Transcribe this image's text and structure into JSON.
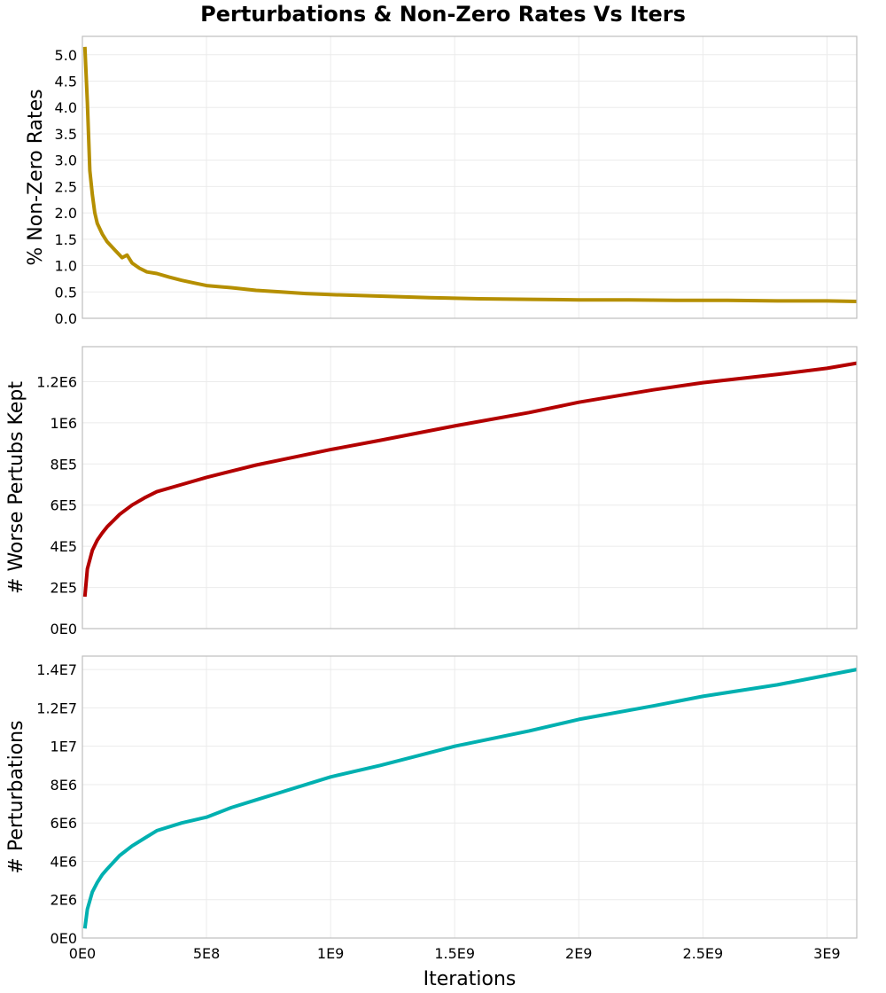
{
  "title": "Perturbations & Non-Zero Rates Vs Iters",
  "chart_data": [
    {
      "type": "line",
      "panel": 1,
      "title": "Perturbations & Non-Zero Rates Vs Iters",
      "xlabel": "Iterations",
      "ylabel": "% Non-Zero Rates",
      "color": "#b58f00",
      "xlim": [
        0,
        3120000000.0
      ],
      "ylim": [
        0,
        5.35
      ],
      "yticks": [
        0.0,
        0.5,
        1.0,
        1.5,
        2.0,
        2.5,
        3.0,
        3.5,
        4.0,
        4.5,
        5.0
      ],
      "ytick_labels": [
        "0.0",
        "0.5",
        "1.0",
        "1.5",
        "2.0",
        "2.5",
        "3.0",
        "3.5",
        "4.0",
        "4.5",
        "5.0"
      ],
      "grid": true,
      "x": [
        10000000.0,
        20000000.0,
        30000000.0,
        40000000.0,
        50000000.0,
        60000000.0,
        80000000.0,
        100000000.0,
        130000000.0,
        160000000.0,
        180000000.0,
        200000000.0,
        230000000.0,
        260000000.0,
        300000000.0,
        350000000.0,
        400000000.0,
        450000000.0,
        500000000.0,
        600000000.0,
        700000000.0,
        800000000.0,
        900000000.0,
        1000000000.0,
        1200000000.0,
        1400000000.0,
        1600000000.0,
        1800000000.0,
        2000000000.0,
        2200000000.0,
        2400000000.0,
        2600000000.0,
        2800000000.0,
        3000000000.0,
        3120000000.0
      ],
      "y": [
        5.15,
        4.1,
        2.8,
        2.35,
        2.0,
        1.8,
        1.6,
        1.45,
        1.3,
        1.15,
        1.2,
        1.05,
        0.95,
        0.88,
        0.85,
        0.78,
        0.72,
        0.67,
        0.62,
        0.58,
        0.53,
        0.5,
        0.47,
        0.45,
        0.42,
        0.39,
        0.37,
        0.36,
        0.35,
        0.35,
        0.34,
        0.34,
        0.33,
        0.33,
        0.32
      ]
    },
    {
      "type": "line",
      "panel": 2,
      "xlabel": "Iterations",
      "ylabel": "# Worse Pertubs Kept",
      "color": "#b30000",
      "xlim": [
        0,
        3120000000.0
      ],
      "ylim": [
        0,
        1370000.0
      ],
      "yticks": [
        0,
        200000,
        400000,
        600000,
        800000,
        1000000,
        1200000
      ],
      "ytick_labels": [
        "0E0",
        "2E5",
        "4E5",
        "6E5",
        "8E5",
        "1E6",
        "1.2E6"
      ],
      "grid": true,
      "x": [
        10000000.0,
        20000000.0,
        40000000.0,
        60000000.0,
        80000000.0,
        100000000.0,
        150000000.0,
        200000000.0,
        250000000.0,
        300000000.0,
        400000000.0,
        500000000.0,
        600000000.0,
        700000000.0,
        800000000.0,
        1000000000.0,
        1200000000.0,
        1500000000.0,
        1800000000.0,
        2000000000.0,
        2300000000.0,
        2500000000.0,
        2800000000.0,
        3000000000.0,
        3120000000.0
      ],
      "y": [
        155000,
        290000,
        380000,
        430000,
        465000,
        495000,
        555000,
        600000,
        635000,
        665000,
        700000,
        735000,
        765000,
        795000,
        820000,
        870000,
        915000,
        985000,
        1050000,
        1100000,
        1160000,
        1195000,
        1235000,
        1265000,
        1290000
      ]
    },
    {
      "type": "line",
      "panel": 3,
      "xlabel": "Iterations",
      "ylabel": "# Perturbations",
      "color": "#00b0b0",
      "xlim": [
        0,
        3120000000.0
      ],
      "ylim": [
        0,
        14700000.0
      ],
      "yticks": [
        0,
        2000000,
        4000000,
        6000000,
        8000000,
        10000000,
        12000000,
        14000000
      ],
      "ytick_labels": [
        "0E0",
        "2E6",
        "4E6",
        "6E6",
        "8E6",
        "1E7",
        "1.2E7",
        "1.4E7"
      ],
      "xticks": [
        0,
        500000000.0,
        1000000000.0,
        1500000000.0,
        2000000000.0,
        2500000000.0,
        3000000000.0
      ],
      "xtick_labels": [
        "0E0",
        "5E8",
        "1E9",
        "1.5E9",
        "2E9",
        "2.5E9",
        "3E9"
      ],
      "grid": true,
      "x": [
        10000000.0,
        20000000.0,
        40000000.0,
        60000000.0,
        80000000.0,
        100000000.0,
        150000000.0,
        200000000.0,
        250000000.0,
        300000000.0,
        400000000.0,
        500000000.0,
        600000000.0,
        700000000.0,
        800000000.0,
        1000000000.0,
        1200000000.0,
        1500000000.0,
        1800000000.0,
        2000000000.0,
        2300000000.0,
        2500000000.0,
        2800000000.0,
        3000000000.0,
        3120000000.0
      ],
      "y": [
        500000,
        1500000,
        2400000,
        2900000,
        3300000,
        3600000,
        4300000,
        4800000,
        5200000,
        5600000,
        6000000,
        6300000,
        6800000,
        7200000,
        7600000,
        8400000,
        9000000,
        10000000,
        10800000,
        11400000,
        12100000,
        12600000,
        13200000,
        13700000,
        14000000
      ]
    }
  ]
}
